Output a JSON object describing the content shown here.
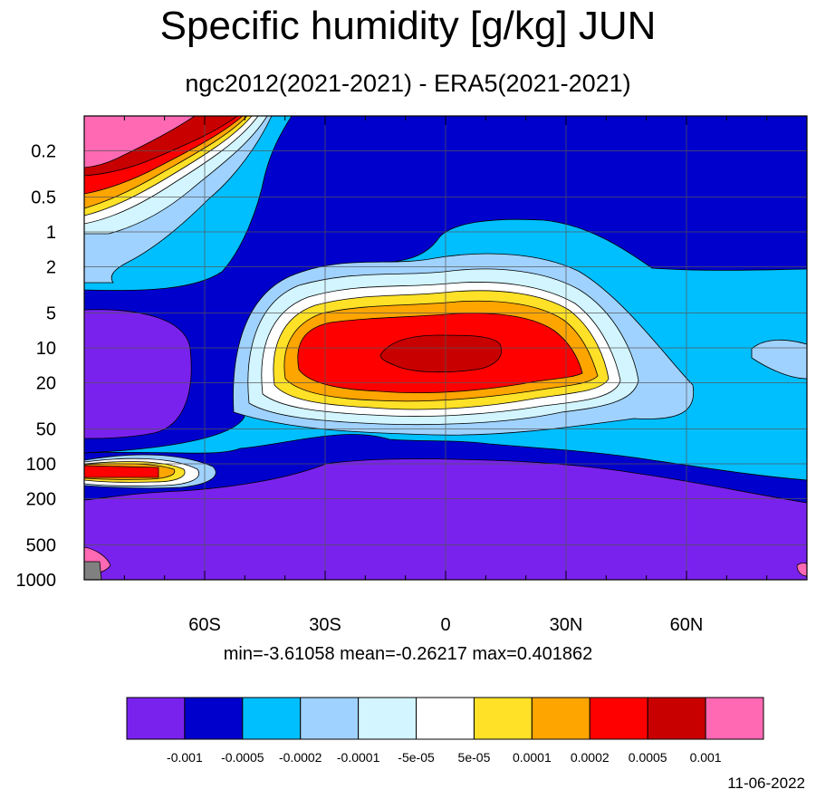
{
  "chart_data": {
    "type": "contour",
    "title": "Specific humidity [g/kg] JUN",
    "subtitle": "ngc2012(2021-2021) - ERA5(2021-2021)",
    "stats_text": "min=-3.61058   mean=-0.26217   max=0.401862",
    "date": "11-06-2022",
    "x_axis": {
      "type": "latitude",
      "range": [
        -90,
        90
      ],
      "tick_labels": [
        "60S",
        "30S",
        "0",
        "30N",
        "60N"
      ],
      "tick_values": [
        -60,
        -30,
        0,
        30,
        60
      ],
      "minor_tick_step": 10
    },
    "y_axis": {
      "type": "pressure (hPa), log scale, reversed",
      "range": [
        1000,
        0.1
      ],
      "tick_labels": [
        "0.2",
        "0.5",
        "1",
        "2",
        "5",
        "10",
        "20",
        "50",
        "100",
        "200",
        "500",
        "1000"
      ],
      "tick_values": [
        0.2,
        0.5,
        1,
        2,
        5,
        10,
        20,
        50,
        100,
        200,
        500,
        1000
      ]
    },
    "grid": true,
    "levels": [
      "-0.001",
      "-0.0005",
      "-0.0002",
      "-0.0001",
      "-5e-05",
      "5e-05",
      "0.0001",
      "0.0002",
      "0.0005",
      "0.001"
    ],
    "colorbar_colors": [
      "#7a22ed",
      "#0000cd",
      "#00bfff",
      "#a0d2ff",
      "#d2f5ff",
      "#ffffff",
      "#ffe128",
      "#ffa500",
      "#ff0000",
      "#c80000",
      "#ff69b4"
    ],
    "features": [
      {
        "region": "tropical stratosphere, ~20S-40N, 5-30 hPa",
        "value_range": "0.0002 to 0.0005+",
        "sign": "positive max"
      },
      {
        "region": "southern polar upper stratosphere, 90S-60S, 0.1-1 hPa",
        "value_range": "up to >0.001",
        "sign": "positive"
      },
      {
        "region": "southern high latitudes, ~120 hPa",
        "value_range": "~0.0002",
        "sign": "positive"
      },
      {
        "region": "troposphere, all latitudes, 100-1000 hPa",
        "value_range": "< -0.001",
        "sign": "negative"
      },
      {
        "region": "southern polar lower stratosphere, 90S-65S, 5-50 hPa",
        "value_range": "< -0.001",
        "sign": "negative"
      },
      {
        "region": "upper stratosphere / mesosphere, 30S-90N, 0.1-2 hPa",
        "value_range": "-0.001 to -0.0005",
        "sign": "negative"
      }
    ]
  }
}
